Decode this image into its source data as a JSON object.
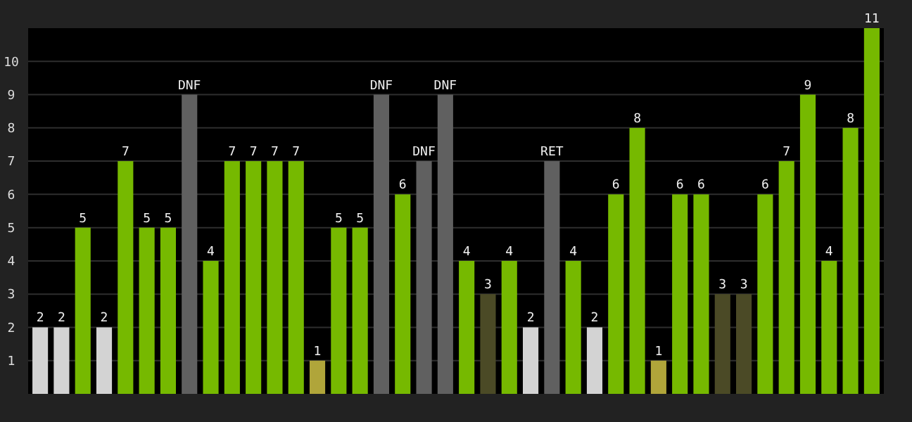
{
  "chart_data": {
    "type": "bar",
    "categories": [
      null,
      null,
      null,
      null,
      null,
      null,
      null,
      null,
      null,
      null,
      null,
      null,
      null,
      null,
      null,
      null,
      null,
      null,
      null,
      null,
      null,
      null,
      null,
      null,
      null,
      null,
      null,
      null,
      null,
      null,
      null,
      null,
      null,
      null,
      null,
      null,
      null,
      null,
      null,
      null
    ],
    "values": [
      2,
      2,
      5,
      2,
      7,
      5,
      5,
      9,
      4,
      7,
      7,
      7,
      7,
      1,
      5,
      5,
      9,
      6,
      7,
      9,
      4,
      3,
      4,
      2,
      7,
      4,
      2,
      6,
      8,
      1,
      6,
      6,
      3,
      3,
      6,
      7,
      9,
      4,
      8,
      11
    ],
    "value_labels": [
      "2",
      "2",
      "5",
      "2",
      "7",
      "5",
      "5",
      "DNF",
      "4",
      "7",
      "7",
      "7",
      "7",
      "1",
      "5",
      "5",
      "DNF",
      "6",
      "DNF",
      "DNF",
      "4",
      "3",
      "4",
      "2",
      "RET",
      "4",
      "2",
      "6",
      "8",
      "1",
      "6",
      "6",
      "3",
      "3",
      "6",
      "7",
      "9",
      "4",
      "8",
      "11"
    ],
    "colors": [
      "#d3d3d3",
      "#d3d3d3",
      "#76b900",
      "#d3d3d3",
      "#76b900",
      "#76b900",
      "#76b900",
      "#606060",
      "#76b900",
      "#76b900",
      "#76b900",
      "#76b900",
      "#76b900",
      "#b0a53a",
      "#76b900",
      "#76b900",
      "#606060",
      "#76b900",
      "#606060",
      "#606060",
      "#76b900",
      "#4b4a26",
      "#76b900",
      "#d3d3d3",
      "#606060",
      "#76b900",
      "#d3d3d3",
      "#76b900",
      "#76b900",
      "#b0a53a",
      "#76b900",
      "#76b900",
      "#4b4a26",
      "#4b4a26",
      "#76b900",
      "#76b900",
      "#76b900",
      "#76b900",
      "#76b900",
      "#76b900"
    ],
    "ylim": [
      0,
      11
    ],
    "yticks": [
      1,
      2,
      3,
      4,
      5,
      6,
      7,
      8,
      9,
      10
    ],
    "grid": "y"
  }
}
